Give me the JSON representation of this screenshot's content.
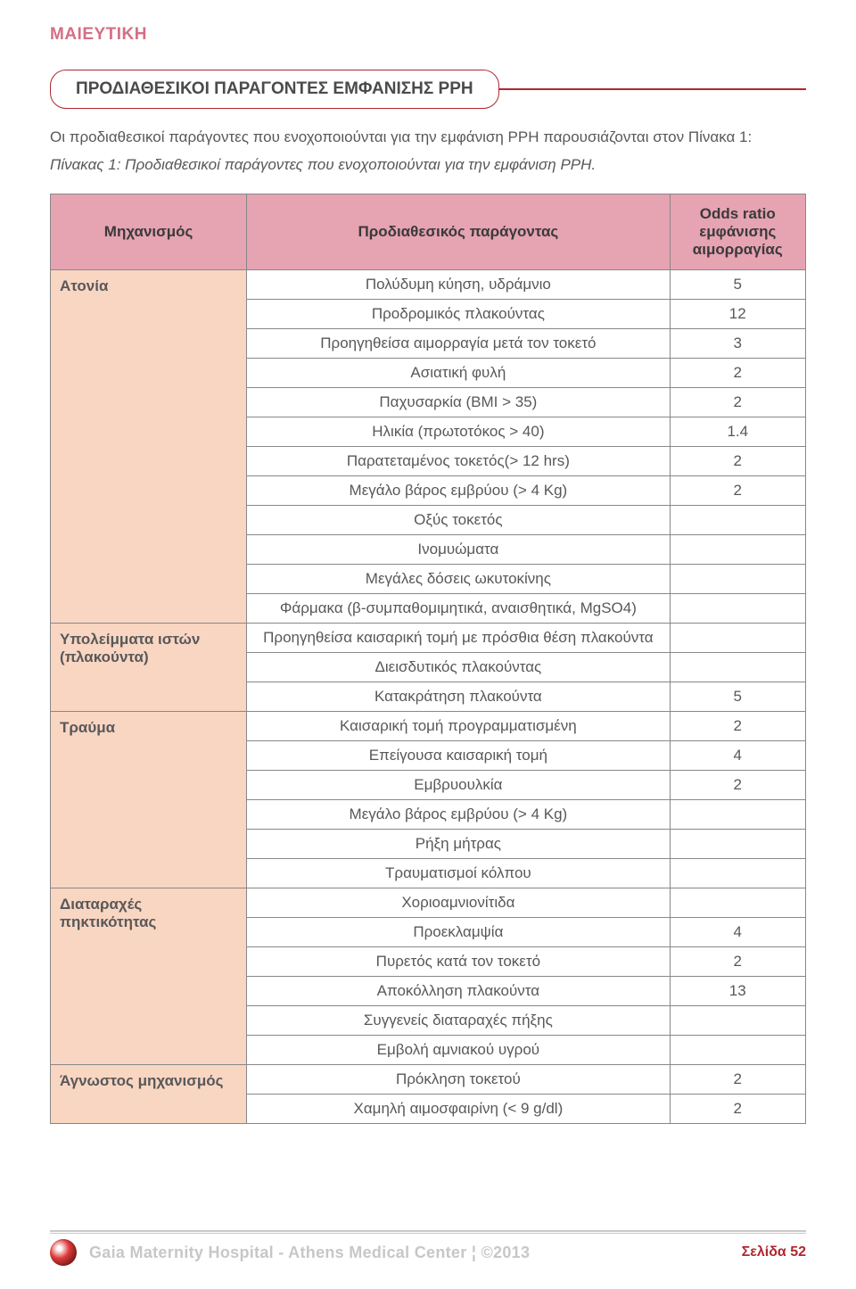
{
  "header": {
    "category": "ΜΑΙΕΥΤΙΚΗ"
  },
  "section": {
    "title": "ΠΡΟΔΙΑΘΕΣΙΚΟΙ ΠΑΡΑΓΟΝΤΕΣ ΕΜΦΑΝΙΣΗΣ PPH",
    "intro": "Οι προδιαθεσικοί παράγοντες που ενοχοποιούνται για την εμφάνιση PPH παρουσιάζονται στον Πίνακα 1:",
    "caption": "Πίνακας 1: Προδιαθεσικοί παράγοντες που ενοχοποιούνται για την εμφάνιση PPH."
  },
  "table": {
    "columns": {
      "c1": "Μηχανισμός",
      "c2": "Προδιαθεσικός παράγοντας",
      "c3": "Odds ratio εμφάνισης αιμορραγίας"
    },
    "groups": [
      {
        "mech": "Ατονία",
        "rows": [
          {
            "factor": "Πολύδυμη κύηση, υδράμνιο",
            "val": "5"
          },
          {
            "factor": "Προδρομικός πλακούντας",
            "val": "12"
          },
          {
            "factor": "Προηγηθείσα αιμορραγία μετά τον τοκετό",
            "val": "3"
          },
          {
            "factor": "Ασιατική φυλή",
            "val": "2"
          },
          {
            "factor": "Παχυσαρκία (BMI > 35)",
            "val": "2"
          },
          {
            "factor": "Ηλικία (πρωτοτόκος > 40)",
            "val": "1.4"
          },
          {
            "factor": "Παρατεταμένος τοκετός(> 12 hrs)",
            "val": "2"
          },
          {
            "factor": "Μεγάλο βάρος εμβρύου (> 4 Kg)",
            "val": "2"
          },
          {
            "factor": "Οξύς τοκετός",
            "val": ""
          },
          {
            "factor": "Ινομυώματα",
            "val": ""
          },
          {
            "factor": "Μεγάλες δόσεις ωκυτοκίνης",
            "val": ""
          },
          {
            "factor": "Φάρμακα (β-συμπαθομιμητικά, αναισθητικά, MgSO4)",
            "val": ""
          }
        ]
      },
      {
        "mech": "Υπολείμματα ιστών (πλακούντα)",
        "rows": [
          {
            "factor": "Προηγηθείσα καισαρική τομή με πρόσθια θέση πλακούντα",
            "val": ""
          },
          {
            "factor": "Διεισδυτικός πλακούντας",
            "val": ""
          },
          {
            "factor": "Κατακράτηση πλακούντα",
            "val": "5"
          }
        ]
      },
      {
        "mech": "Τραύμα",
        "rows": [
          {
            "factor": "Καισαρική τομή προγραμματισμένη",
            "val": "2"
          },
          {
            "factor": "Επείγουσα καισαρική τομή",
            "val": "4"
          },
          {
            "factor": "Εμβρυουλκία",
            "val": "2"
          },
          {
            "factor": "Μεγάλο βάρος εμβρύου (> 4 Kg)",
            "val": ""
          },
          {
            "factor": "Ρήξη μήτρας",
            "val": ""
          },
          {
            "factor": "Τραυματισμοί κόλπου",
            "val": ""
          }
        ]
      },
      {
        "mech": "Διαταραχές πηκτικότητας",
        "rows": [
          {
            "factor": "Χοριοαμνιονίτιδα",
            "val": ""
          },
          {
            "factor": "Προεκλαμψία",
            "val": "4"
          },
          {
            "factor": "Πυρετός κατά τον τοκετό",
            "val": "2"
          },
          {
            "factor": "Αποκόλληση πλακούντα",
            "val": "13"
          },
          {
            "factor": "Συγγενείς διαταραχές πήξης",
            "val": ""
          },
          {
            "factor": "Εμβολή αμνιακού υγρού",
            "val": ""
          }
        ]
      },
      {
        "mech": "Άγνωστος μηχανισμός",
        "rows": [
          {
            "factor": "Πρόκληση τοκετού",
            "val": "2"
          },
          {
            "factor": "Χαμηλή αιμοσφαιρίνη (< 9 g/dl)",
            "val": "2"
          }
        ]
      }
    ]
  },
  "footer": {
    "line": "Gaia Maternity Hospital - Athens Medical Center ¦ ©2013",
    "page": "Σελίδα 52"
  }
}
